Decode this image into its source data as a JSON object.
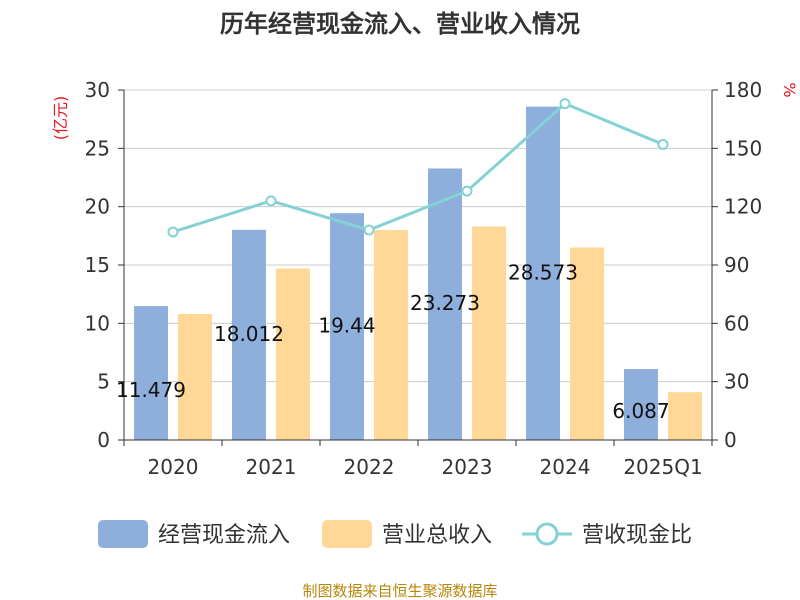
{
  "chart_data": {
    "type": "bar",
    "title": "历年经营现金流入、营业收入情况",
    "categories": [
      "2020",
      "2021",
      "2022",
      "2023",
      "2024",
      "2025Q1"
    ],
    "series": [
      {
        "name": "经营现金流入",
        "kind": "bar",
        "axis": "left",
        "color": "#8eaedb",
        "values": [
          11.479,
          18.012,
          19.44,
          23.273,
          28.573,
          6.087
        ],
        "labels": [
          "11.479",
          "18.012",
          "19.44",
          "23.273",
          "28.573",
          "6.087"
        ]
      },
      {
        "name": "营业总收入",
        "kind": "bar",
        "axis": "left",
        "color": "#ffd897",
        "values": [
          10.8,
          14.7,
          18.0,
          18.3,
          16.5,
          4.1
        ]
      },
      {
        "name": "营收现金比",
        "kind": "line",
        "axis": "right",
        "color": "#84d2d6",
        "values": [
          107,
          123,
          108,
          128,
          173,
          152
        ]
      }
    ],
    "y_left": {
      "label": "(亿元)",
      "range": [
        0,
        30
      ],
      "ticks": [
        0,
        5,
        10,
        15,
        20,
        25,
        30
      ]
    },
    "y_right": {
      "label": "%",
      "range": [
        0,
        180
      ],
      "ticks": [
        0,
        30,
        60,
        90,
        120,
        150,
        180
      ]
    },
    "grid": true,
    "legend_position": "bottom",
    "source": "制图数据来自恒生聚源数据库"
  }
}
